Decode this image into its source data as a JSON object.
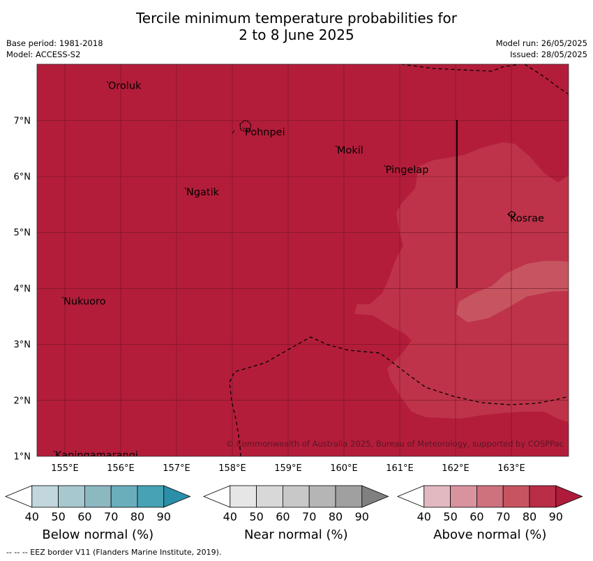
{
  "title": {
    "line1": "Tercile minimum temperature probabilities for",
    "line2": "2 to 8 June 2025"
  },
  "meta": {
    "base_period": "Base period: 1981-2018",
    "model": "Model: ACCESS-S2",
    "model_run": "Model run: 26/05/2025",
    "issued": "Issued: 28/05/2025"
  },
  "map": {
    "lat_ticks": [
      "7°N",
      "6°N",
      "5°N",
      "4°N",
      "3°N",
      "2°N",
      "1°N"
    ],
    "lon_ticks": [
      "155°E",
      "156°E",
      "157°E",
      "158°E",
      "159°E",
      "160°E",
      "161°E",
      "162°E",
      "163°E"
    ],
    "places": [
      {
        "name": "Oroluk",
        "lon": 155.75,
        "lat": 7.7
      },
      {
        "name": "Pohnpei",
        "lon": 158.2,
        "lat": 6.87
      },
      {
        "name": "Mokil",
        "lon": 159.85,
        "lat": 6.55
      },
      {
        "name": "Pingelap",
        "lon": 160.72,
        "lat": 6.2
      },
      {
        "name": "Ngatik",
        "lon": 157.15,
        "lat": 5.8
      },
      {
        "name": "Kosrae",
        "lon": 162.95,
        "lat": 5.33
      },
      {
        "name": "Nukuoro",
        "lon": 154.95,
        "lat": 3.85
      },
      {
        "name": "Kapingamarangi",
        "lon": 154.8,
        "lat": 1.1
      }
    ],
    "copyright": "© Commonwealth of Australia 2025, Bureau of Meteorology, supported by COSPPac",
    "background_color": "#b31d3a",
    "light_region_color": "#be3349",
    "lighter_region_color": "#c65560"
  },
  "legends": [
    {
      "label": "Below normal (%)",
      "ticks": [
        "40",
        "50",
        "60",
        "70",
        "80",
        "90"
      ],
      "colors": [
        "#ffffff",
        "#c1d6dd",
        "#a7c8cf",
        "#8cb8c2",
        "#6aaebc",
        "#47a2b5",
        "#2a8fa8"
      ]
    },
    {
      "label": "Near normal (%)",
      "ticks": [
        "40",
        "50",
        "60",
        "70",
        "80",
        "90"
      ],
      "colors": [
        "#ffffff",
        "#e6e6e6",
        "#d8d8d8",
        "#c8c8c8",
        "#b5b5b5",
        "#a0a0a0",
        "#808080"
      ]
    },
    {
      "label": "Above normal (%)",
      "ticks": [
        "40",
        "50",
        "60",
        "70",
        "80",
        "90"
      ],
      "colors": [
        "#ffffff",
        "#e3b9c1",
        "#d9939e",
        "#ce727e",
        "#c65560",
        "#b92d46",
        "#b01b3b"
      ]
    }
  ],
  "footer": "-- -- -- EEZ border V11 (Flanders Marine Institute, 2019)."
}
